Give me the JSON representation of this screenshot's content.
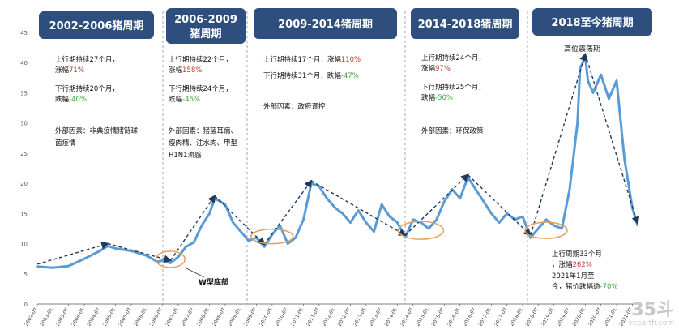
{
  "chart_data": {
    "type": "line",
    "title": "",
    "xlabel": "",
    "ylabel": "",
    "ylim": [
      0,
      45
    ],
    "yticks": [
      0,
      5,
      10,
      15,
      20,
      25,
      30,
      35,
      40,
      45
    ],
    "x_tick_labels": [
      "2002-07",
      "2003-01",
      "2003-07",
      "2004-01",
      "2004-07",
      "2005-01",
      "2005-07",
      "2006-01",
      "2006-07",
      "2007-01",
      "2007-07",
      "2008-01",
      "2008-07",
      "2009-01",
      "2009-07",
      "2010-01",
      "2010-07",
      "2011-01",
      "2011-07",
      "2012-01",
      "2012-07",
      "2013-01",
      "2013-07",
      "2014-01",
      "2014-07",
      "2015-01",
      "2015-07",
      "2016-01",
      "2016-07",
      "2017-01",
      "2017-07",
      "2018-01",
      "2018-07",
      "2019-01",
      "2019-07",
      "2020-01",
      "2020-07",
      "2021-01",
      "2021-07"
    ],
    "series": [
      {
        "name": "",
        "color": "#5b9bd5",
        "x": [
          "2002-07",
          "2003-01",
          "2003-07",
          "2004-01",
          "2004-07",
          "2004-10",
          "2005-01",
          "2005-07",
          "2006-01",
          "2006-05",
          "2006-07",
          "2006-10",
          "2007-01",
          "2007-04",
          "2007-07",
          "2007-10",
          "2008-01",
          "2008-03",
          "2008-07",
          "2008-10",
          "2009-01",
          "2009-04",
          "2009-07",
          "2009-10",
          "2010-01",
          "2010-04",
          "2010-07",
          "2010-10",
          "2011-01",
          "2011-04",
          "2011-07",
          "2011-10",
          "2012-01",
          "2012-04",
          "2012-07",
          "2012-10",
          "2013-01",
          "2013-04",
          "2013-07",
          "2013-10",
          "2014-01",
          "2014-04",
          "2014-07",
          "2014-10",
          "2015-01",
          "2015-04",
          "2015-07",
          "2015-10",
          "2016-01",
          "2016-04",
          "2016-07",
          "2016-10",
          "2017-01",
          "2017-04",
          "2017-07",
          "2017-10",
          "2018-01",
          "2018-04",
          "2018-07",
          "2018-10",
          "2019-01",
          "2019-04",
          "2019-07",
          "2019-10",
          "2019-11",
          "2020-01",
          "2020-02",
          "2020-04",
          "2020-07",
          "2020-10",
          "2021-01",
          "2021-04",
          "2021-07",
          "2021-09"
        ],
        "values": [
          6.2,
          6.0,
          6.3,
          7.5,
          8.8,
          9.6,
          9.2,
          8.8,
          8.0,
          7.0,
          7.2,
          6.8,
          7.8,
          9.5,
          10.2,
          13.0,
          15.0,
          17.5,
          16.5,
          13.5,
          12.0,
          10.5,
          11.0,
          9.5,
          11.5,
          13.0,
          10.0,
          11.0,
          14.0,
          20.0,
          19.5,
          17.5,
          16.0,
          15.0,
          13.5,
          15.5,
          13.5,
          12.0,
          16.5,
          14.5,
          13.5,
          11.0,
          14.0,
          13.5,
          12.5,
          14.0,
          17.0,
          19.0,
          17.5,
          21.0,
          19.0,
          17.0,
          15.0,
          13.5,
          15.0,
          14.0,
          14.5,
          11.0,
          12.5,
          14.0,
          13.0,
          12.5,
          19.0,
          30.0,
          39.0,
          41.0,
          37.0,
          35.0,
          38.0,
          34.0,
          37.0,
          24.0,
          16.0,
          13.0
        ]
      }
    ],
    "periods": [
      {
        "title": "2002-2006猪周期",
        "up": "上行期持续27个月，涨幅",
        "up_pct": "71%",
        "down": "下行期持续20个月，跌幅",
        "down_pct": "-40%",
        "factor": "外部因素：非典疫情猪链球菌疫情"
      },
      {
        "title": "2006-2009猪周期",
        "up": "上行期持续22个月，涨幅",
        "up_pct": "158%",
        "down": "下行期持续24个月，跌幅",
        "down_pct": "-46%",
        "factor": "外部因素：猪蓝耳病、瘦肉精、注水肉、甲型H1N1流感"
      },
      {
        "title": "2009-2014猪周期",
        "up": "上行期持续17个月，涨幅",
        "up_pct": "110%",
        "down": "下行期持续31个月，跌幅",
        "down_pct": "-47%",
        "factor": "外部因素：政府调控"
      },
      {
        "title": "2014-2018猪周期",
        "up": "上行期持续24个月，涨幅",
        "up_pct": "97%",
        "down": "下行期持续25个月，跌幅",
        "down_pct": "-50%",
        "factor": "外部因素：环保政策"
      },
      {
        "title": "2018至今猪周期",
        "up": "上行周期33个月，涨幅",
        "up_pct": "262%",
        "down": "2021年1月至今，猪价跌幅逾",
        "down_pct": "-70%",
        "factor": ""
      }
    ],
    "annotations": {
      "w_bottom": "W型底部",
      "high_plateau": "高位震荡期"
    }
  },
  "colors": {
    "line": "#5b9bd5",
    "header_bg": "#2e4f7e",
    "up_pct": "#c0392b",
    "down_pct": "#3fa544",
    "ellipse": "#e0a060",
    "divider": "#9aa7b4"
  },
  "watermark": {
    "brand": "35斗",
    "site": "vcearth.com"
  }
}
